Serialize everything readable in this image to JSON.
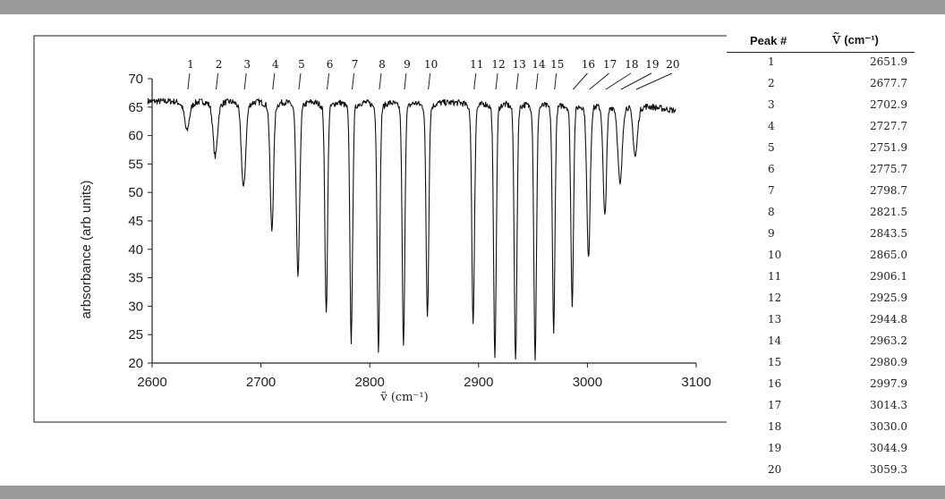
{
  "chart_data": {
    "type": "line",
    "title": "",
    "xlabel": "ṽ (cm⁻¹)",
    "ylabel": "arbsorbance (arb units)",
    "xlim": [
      2600,
      3100
    ],
    "ylim": [
      20,
      70
    ],
    "x_ticks": [
      2600,
      2700,
      2800,
      2900,
      3000,
      3100
    ],
    "y_ticks": [
      20,
      25,
      30,
      35,
      40,
      45,
      50,
      55,
      60,
      65,
      70
    ],
    "grid": false,
    "legend": "none",
    "baseline": 66,
    "series": [
      {
        "peaks": [
          {
            "label": "1",
            "x": 2632,
            "min": 62
          },
          {
            "label": "2",
            "x": 2658,
            "min": 57.5
          },
          {
            "label": "3",
            "x": 2684,
            "min": 52
          },
          {
            "label": "4",
            "x": 2710,
            "min": 44.5
          },
          {
            "label": "5",
            "x": 2734,
            "min": 36.5
          },
          {
            "label": "6",
            "x": 2760,
            "min": 30
          },
          {
            "label": "7",
            "x": 2783,
            "min": 25
          },
          {
            "label": "8",
            "x": 2808,
            "min": 23.5
          },
          {
            "label": "9",
            "x": 2831,
            "min": 24
          },
          {
            "label": "10",
            "x": 2853,
            "min": 29.5
          },
          {
            "label": "11",
            "x": 2895,
            "min": 28
          },
          {
            "label": "12",
            "x": 2915,
            "min": 22.5
          },
          {
            "label": "13",
            "x": 2934,
            "min": 21.5
          },
          {
            "label": "14",
            "x": 2952,
            "min": 22
          },
          {
            "label": "15",
            "x": 2969,
            "min": 27
          },
          {
            "label": "16",
            "x": 2986,
            "min": 31.5
          },
          {
            "label": "17",
            "x": 3001,
            "min": 39.5
          },
          {
            "label": "18",
            "x": 3016,
            "min": 47
          },
          {
            "label": "19",
            "x": 3030,
            "min": 52.5
          },
          {
            "label": "20",
            "x": 3044,
            "min": 57.5
          }
        ]
      }
    ]
  },
  "table": {
    "header_peak": "Peak #",
    "header_symbol": "ṽ",
    "header_unit": "(cm⁻¹)",
    "rows": [
      {
        "peak": "1",
        "wavenumber": "2651.9"
      },
      {
        "peak": "2",
        "wavenumber": "2677.7"
      },
      {
        "peak": "3",
        "wavenumber": "2702.9"
      },
      {
        "peak": "4",
        "wavenumber": "2727.7"
      },
      {
        "peak": "5",
        "wavenumber": "2751.9"
      },
      {
        "peak": "6",
        "wavenumber": "2775.7"
      },
      {
        "peak": "7",
        "wavenumber": "2798.7"
      },
      {
        "peak": "8",
        "wavenumber": "2821.5"
      },
      {
        "peak": "9",
        "wavenumber": "2843.5"
      },
      {
        "peak": "10",
        "wavenumber": "2865.0"
      },
      {
        "peak": "11",
        "wavenumber": "2906.1"
      },
      {
        "peak": "12",
        "wavenumber": "2925.9"
      },
      {
        "peak": "13",
        "wavenumber": "2944.8"
      },
      {
        "peak": "14",
        "wavenumber": "2963.2"
      },
      {
        "peak": "15",
        "wavenumber": "2980.9"
      },
      {
        "peak": "16",
        "wavenumber": "2997.9"
      },
      {
        "peak": "17",
        "wavenumber": "3014.3"
      },
      {
        "peak": "18",
        "wavenumber": "3030.0"
      },
      {
        "peak": "19",
        "wavenumber": "3044.9"
      },
      {
        "peak": "20",
        "wavenumber": "3059.3"
      }
    ]
  }
}
